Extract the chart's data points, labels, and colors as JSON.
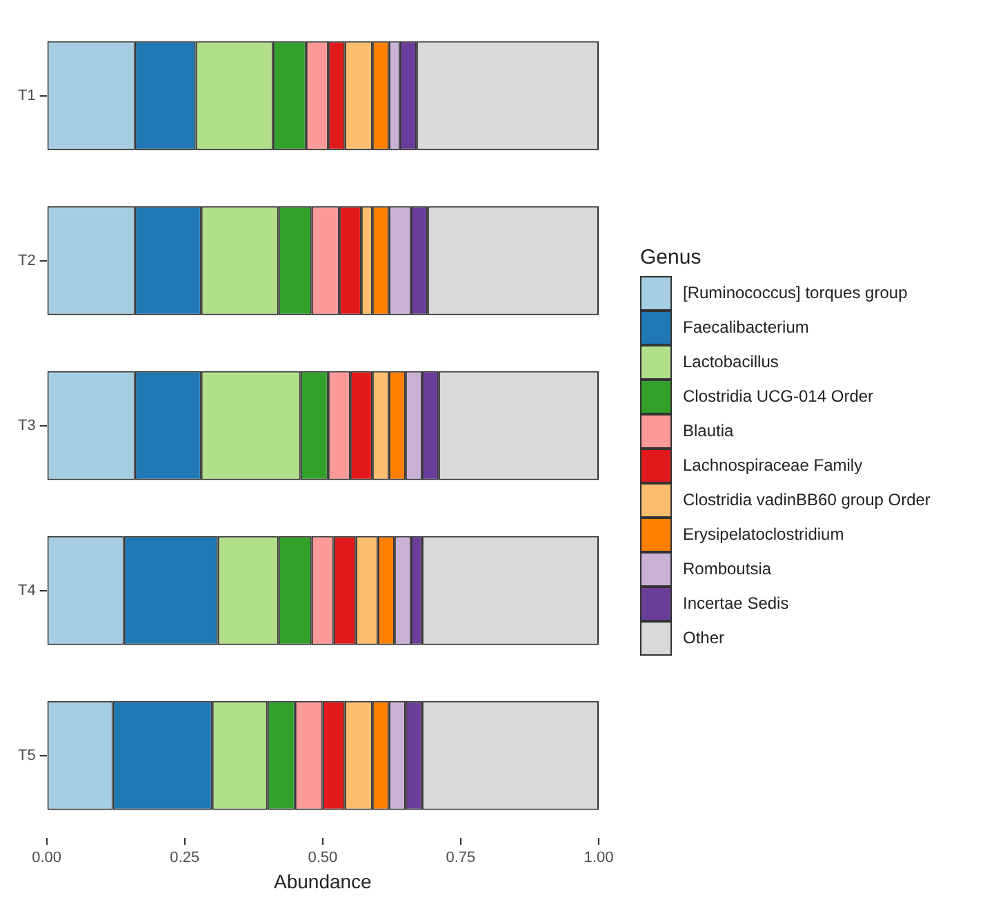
{
  "chart_data": {
    "type": "bar",
    "orientation": "horizontal",
    "stacked": true,
    "xlabel": "Abundance",
    "legend_title": "Genus",
    "legend": "right",
    "grid": false,
    "categories": [
      "T1",
      "T2",
      "T3",
      "T4",
      "T5"
    ],
    "xlim": [
      0,
      1
    ],
    "xticks": [
      {
        "value": 0,
        "label": "0.00"
      },
      {
        "value": 0.25,
        "label": "0.25"
      },
      {
        "value": 0.5,
        "label": "0.50"
      },
      {
        "value": 0.75,
        "label": "0.75"
      },
      {
        "value": 1,
        "label": "1.00"
      }
    ],
    "series": [
      {
        "name": "[Ruminococcus] torques group",
        "color": "#a6cee3",
        "values": [
          0.16,
          0.16,
          0.16,
          0.14,
          0.12
        ]
      },
      {
        "name": "Faecalibacterium",
        "color": "#1f78b4",
        "values": [
          0.11,
          0.12,
          0.12,
          0.17,
          0.18
        ]
      },
      {
        "name": "Lactobacillus",
        "color": "#b2df8a",
        "values": [
          0.14,
          0.14,
          0.18,
          0.11,
          0.1
        ]
      },
      {
        "name": "Clostridia UCG-014 Order",
        "color": "#33a02c",
        "values": [
          0.06,
          0.06,
          0.05,
          0.06,
          0.05
        ]
      },
      {
        "name": "Blautia",
        "color": "#fb9a99",
        "values": [
          0.04,
          0.05,
          0.04,
          0.04,
          0.05
        ]
      },
      {
        "name": "Lachnospiraceae Family",
        "color": "#e31a1c",
        "values": [
          0.03,
          0.04,
          0.04,
          0.04,
          0.04
        ]
      },
      {
        "name": "Clostridia vadinBB60 group Order",
        "color": "#fdbf6f",
        "values": [
          0.05,
          0.02,
          0.03,
          0.04,
          0.05
        ]
      },
      {
        "name": "Erysipelatoclostridium",
        "color": "#ff7f00",
        "values": [
          0.03,
          0.03,
          0.03,
          0.03,
          0.03
        ]
      },
      {
        "name": "Romboutsia",
        "color": "#cab2d6",
        "values": [
          0.02,
          0.04,
          0.03,
          0.03,
          0.03
        ]
      },
      {
        "name": "Incertae Sedis",
        "color": "#6a3d9a",
        "values": [
          0.03,
          0.03,
          0.03,
          0.02,
          0.03
        ]
      },
      {
        "name": "Other",
        "color": "#d9d9d9",
        "values": [
          0.33,
          0.31,
          0.29,
          0.32,
          0.32
        ]
      }
    ]
  }
}
